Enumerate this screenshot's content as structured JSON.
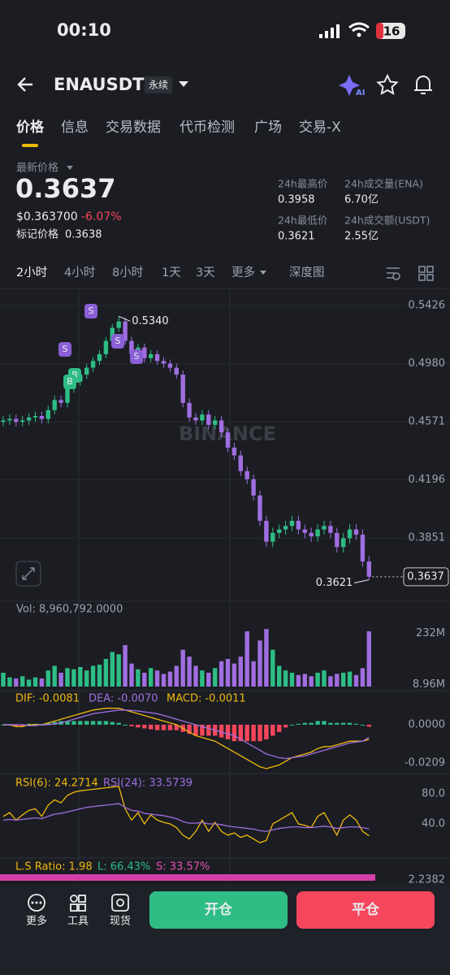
{
  "status": {
    "time": "00:10",
    "battery": "16"
  },
  "header": {
    "symbol": "ENAUSDT",
    "badge": "永续",
    "ai": "AI"
  },
  "tabs": [
    "价格",
    "信息",
    "交易数据",
    "代币检测",
    "广场",
    "交易-X"
  ],
  "price": {
    "latest_label": "最新价格",
    "last": "0.3637",
    "usd": "$0.363700",
    "change": "-6.07%",
    "mark_label": "标记价格",
    "mark": "0.3638"
  },
  "stats": [
    {
      "label": "24h最高价",
      "value": "0.3958"
    },
    {
      "label": "24h成交量(ENA)",
      "value": "6.70亿"
    },
    {
      "label": "24h最低价",
      "value": "0.3621"
    },
    {
      "label": "24h成交额(USDT)",
      "value": "2.55亿"
    }
  ],
  "intervals": [
    "2小时",
    "4小时",
    "8小时",
    "1天",
    "3天",
    "更多",
    "深度图"
  ],
  "chart": {
    "type": "candlestick",
    "log_scale": true,
    "ylim": [
      0.3508,
      0.5564
    ],
    "yticks": [
      0.5426,
      {
        "value": 0.498,
        "label": "0.4980"
      },
      0.4571,
      0.4196,
      0.3851
    ],
    "high_label": "0.5340",
    "low_label": "0.3621",
    "last_label": "0.3637",
    "watermark": "BINANCE",
    "markers": [
      "S",
      "S",
      "S",
      "S",
      "B",
      "B"
    ],
    "candles": [
      [
        0.457,
        0.461,
        0.454,
        0.458
      ],
      [
        0.458,
        0.462,
        0.455,
        0.459
      ],
      [
        0.459,
        0.462,
        0.454,
        0.457
      ],
      [
        0.457,
        0.461,
        0.454,
        0.458
      ],
      [
        0.458,
        0.463,
        0.455,
        0.46
      ],
      [
        0.46,
        0.464,
        0.457,
        0.461
      ],
      [
        0.461,
        0.464,
        0.456,
        0.459
      ],
      [
        0.459,
        0.468,
        0.456,
        0.465
      ],
      [
        0.465,
        0.475,
        0.462,
        0.472
      ],
      [
        0.472,
        0.475,
        0.467,
        0.47
      ],
      [
        0.47,
        0.483,
        0.467,
        0.48
      ],
      [
        0.48,
        0.488,
        0.477,
        0.485
      ],
      [
        0.485,
        0.493,
        0.482,
        0.49
      ],
      [
        0.49,
        0.498,
        0.487,
        0.495
      ],
      [
        0.495,
        0.503,
        0.492,
        0.5
      ],
      [
        0.5,
        0.508,
        0.497,
        0.505
      ],
      [
        0.505,
        0.518,
        0.502,
        0.515
      ],
      [
        0.515,
        0.528,
        0.512,
        0.525
      ],
      [
        0.525,
        0.534,
        0.522,
        0.53
      ],
      [
        0.53,
        0.533,
        0.512,
        0.515
      ],
      [
        0.515,
        0.518,
        0.502,
        0.505
      ],
      [
        0.505,
        0.513,
        0.502,
        0.51
      ],
      [
        0.51,
        0.513,
        0.499,
        0.502
      ],
      [
        0.502,
        0.508,
        0.499,
        0.505
      ],
      [
        0.505,
        0.508,
        0.497,
        0.5
      ],
      [
        0.5,
        0.503,
        0.495,
        0.498
      ],
      [
        0.498,
        0.501,
        0.492,
        0.495
      ],
      [
        0.495,
        0.498,
        0.487,
        0.49
      ],
      [
        0.49,
        0.493,
        0.467,
        0.47
      ],
      [
        0.47,
        0.473,
        0.457,
        0.46
      ],
      [
        0.46,
        0.463,
        0.455,
        0.458
      ],
      [
        0.458,
        0.465,
        0.455,
        0.462
      ],
      [
        0.462,
        0.465,
        0.452,
        0.455
      ],
      [
        0.455,
        0.461,
        0.452,
        0.458
      ],
      [
        0.458,
        0.461,
        0.447,
        0.45
      ],
      [
        0.45,
        0.453,
        0.437,
        0.44
      ],
      [
        0.44,
        0.443,
        0.432,
        0.435
      ],
      [
        0.435,
        0.438,
        0.422,
        0.425
      ],
      [
        0.425,
        0.428,
        0.417,
        0.42
      ],
      [
        0.42,
        0.423,
        0.407,
        0.41
      ],
      [
        0.41,
        0.413,
        0.392,
        0.395
      ],
      [
        0.395,
        0.398,
        0.38,
        0.383
      ],
      [
        0.383,
        0.391,
        0.38,
        0.388
      ],
      [
        0.388,
        0.393,
        0.385,
        0.39
      ],
      [
        0.39,
        0.395,
        0.387,
        0.392
      ],
      [
        0.392,
        0.398,
        0.389,
        0.395
      ],
      [
        0.395,
        0.398,
        0.387,
        0.39
      ],
      [
        0.39,
        0.393,
        0.385,
        0.388
      ],
      [
        0.388,
        0.391,
        0.383,
        0.386
      ],
      [
        0.386,
        0.393,
        0.383,
        0.39
      ],
      [
        0.39,
        0.395,
        0.387,
        0.392
      ],
      [
        0.392,
        0.395,
        0.385,
        0.388
      ],
      [
        0.388,
        0.391,
        0.377,
        0.38
      ],
      [
        0.38,
        0.388,
        0.377,
        0.385
      ],
      [
        0.385,
        0.393,
        0.382,
        0.39
      ],
      [
        0.39,
        0.393,
        0.384,
        0.387
      ],
      [
        0.387,
        0.39,
        0.369,
        0.372
      ],
      [
        0.372,
        0.375,
        0.3621,
        0.3637
      ]
    ]
  },
  "volume": {
    "title": "Vol: 8,960,792.0000",
    "ylim": [
      0,
      300
    ],
    "yticks": [
      {
        "value": 232,
        "label": "232M"
      },
      {
        "value": 8.96,
        "label": "8.96M"
      }
    ],
    "values": [
      60,
      40,
      35,
      45,
      30,
      40,
      35,
      70,
      90,
      60,
      80,
      75,
      85,
      70,
      90,
      95,
      120,
      150,
      140,
      180,
      100,
      75,
      60,
      80,
      70,
      55,
      65,
      90,
      160,
      130,
      90,
      70,
      60,
      80,
      110,
      120,
      100,
      130,
      240,
      110,
      200,
      250,
      160,
      90,
      70,
      60,
      50,
      55,
      45,
      60,
      70,
      45,
      55,
      60,
      65,
      50,
      80,
      240
    ]
  },
  "macd": {
    "dif_label": "DIF: -0.0081",
    "dea_label": "DEA: -0.0070",
    "macd_label": "MACD: -0.0011",
    "ylim": [
      -0.0249,
      0.0133
    ],
    "yticks": [
      {
        "value": 0,
        "label": "0.0000"
      },
      -0.0209
    ],
    "dif": [
      0,
      0,
      -0.001,
      -0.001,
      0,
      0,
      0,
      0.001,
      0.002,
      0.003,
      0.004,
      0.005,
      0.006,
      0.007,
      0.008,
      0.0085,
      0.009,
      0.009,
      0.009,
      0.008,
      0.007,
      0.006,
      0.005,
      0.004,
      0.003,
      0.002,
      0.001,
      0,
      -0.002,
      -0.004,
      -0.006,
      -0.007,
      -0.008,
      -0.009,
      -0.011,
      -0.013,
      -0.015,
      -0.017,
      -0.019,
      -0.021,
      -0.023,
      -0.024,
      -0.023,
      -0.022,
      -0.02,
      -0.018,
      -0.017,
      -0.016,
      -0.015,
      -0.013,
      -0.012,
      -0.012,
      -0.011,
      -0.01,
      -0.009,
      -0.009,
      -0.009,
      -0.0081
    ],
    "dea": [
      0,
      0,
      0,
      0,
      -0.0005,
      -0.0005,
      0,
      0,
      0.0005,
      0.001,
      0.002,
      0.003,
      0.004,
      0.005,
      0.006,
      0.0065,
      0.007,
      0.0075,
      0.008,
      0.008,
      0.0078,
      0.0075,
      0.007,
      0.0065,
      0.006,
      0.005,
      0.004,
      0.003,
      0.002,
      0.001,
      0,
      -0.001,
      -0.002,
      -0.003,
      -0.004,
      -0.005,
      -0.006,
      -0.008,
      -0.01,
      -0.012,
      -0.014,
      -0.016,
      -0.017,
      -0.018,
      -0.0185,
      -0.018,
      -0.0175,
      -0.017,
      -0.016,
      -0.015,
      -0.014,
      -0.013,
      -0.012,
      -0.011,
      -0.01,
      -0.0095,
      -0.009,
      -0.007
    ],
    "hist": [
      0,
      0,
      -0.001,
      -0.001,
      0.0005,
      0.0005,
      0,
      0.001,
      0.0015,
      0.002,
      0.002,
      0.002,
      0.002,
      0.002,
      0.002,
      0.002,
      0.002,
      0.0015,
      0.001,
      0,
      -0.0008,
      -0.0015,
      -0.002,
      -0.0025,
      -0.003,
      -0.003,
      -0.003,
      -0.003,
      -0.004,
      -0.005,
      -0.006,
      -0.006,
      -0.006,
      -0.006,
      -0.007,
      -0.008,
      -0.009,
      -0.009,
      -0.009,
      -0.009,
      -0.009,
      -0.008,
      -0.006,
      -0.004,
      -0.0015,
      0,
      0.0005,
      0.001,
      0.001,
      0.002,
      0.002,
      0.001,
      0.001,
      0.001,
      0.001,
      0.0005,
      0,
      -0.0011
    ]
  },
  "rsi": {
    "rsi6_label": "RSI(6): 24.2714",
    "rsi24_label": "RSI(24): 33.5739",
    "ylim": [
      1.1,
      98.4
    ],
    "yticks": [
      {
        "value": 80,
        "label": "80.0"
      },
      {
        "value": 40,
        "label": "40.0"
      }
    ],
    "rsi6": [
      50,
      55,
      45,
      52,
      58,
      60,
      50,
      65,
      72,
      68,
      78,
      82,
      84,
      85,
      86,
      87,
      88,
      89,
      90,
      60,
      45,
      55,
      40,
      52,
      45,
      42,
      40,
      35,
      25,
      20,
      30,
      45,
      30,
      42,
      30,
      25,
      28,
      22,
      25,
      20,
      15,
      18,
      40,
      45,
      50,
      55,
      40,
      38,
      35,
      50,
      55,
      40,
      25,
      45,
      52,
      45,
      30,
      24.2714
    ],
    "rsi24": [
      45,
      46,
      45,
      46,
      47,
      48,
      47,
      50,
      53,
      54,
      56,
      58,
      60,
      62,
      63,
      64,
      65,
      66,
      67,
      62,
      58,
      57,
      54,
      53,
      52,
      51,
      49,
      47,
      43,
      41,
      41,
      42,
      40,
      40,
      39,
      37,
      36,
      35,
      34,
      33,
      31,
      30,
      32,
      34,
      35,
      36,
      36,
      35,
      35,
      36,
      37,
      36,
      34,
      35,
      36,
      36,
      35,
      33.5739
    ]
  },
  "ls": {
    "ratio": "L.S Ratio: 1.98",
    "long": "L: 66.43%",
    "short": "S: 33.57%",
    "tick": "2.2382"
  },
  "bottom": {
    "more": "更多",
    "tools": "工具",
    "spot": "现货",
    "open": "开仓",
    "close": "平仓"
  }
}
